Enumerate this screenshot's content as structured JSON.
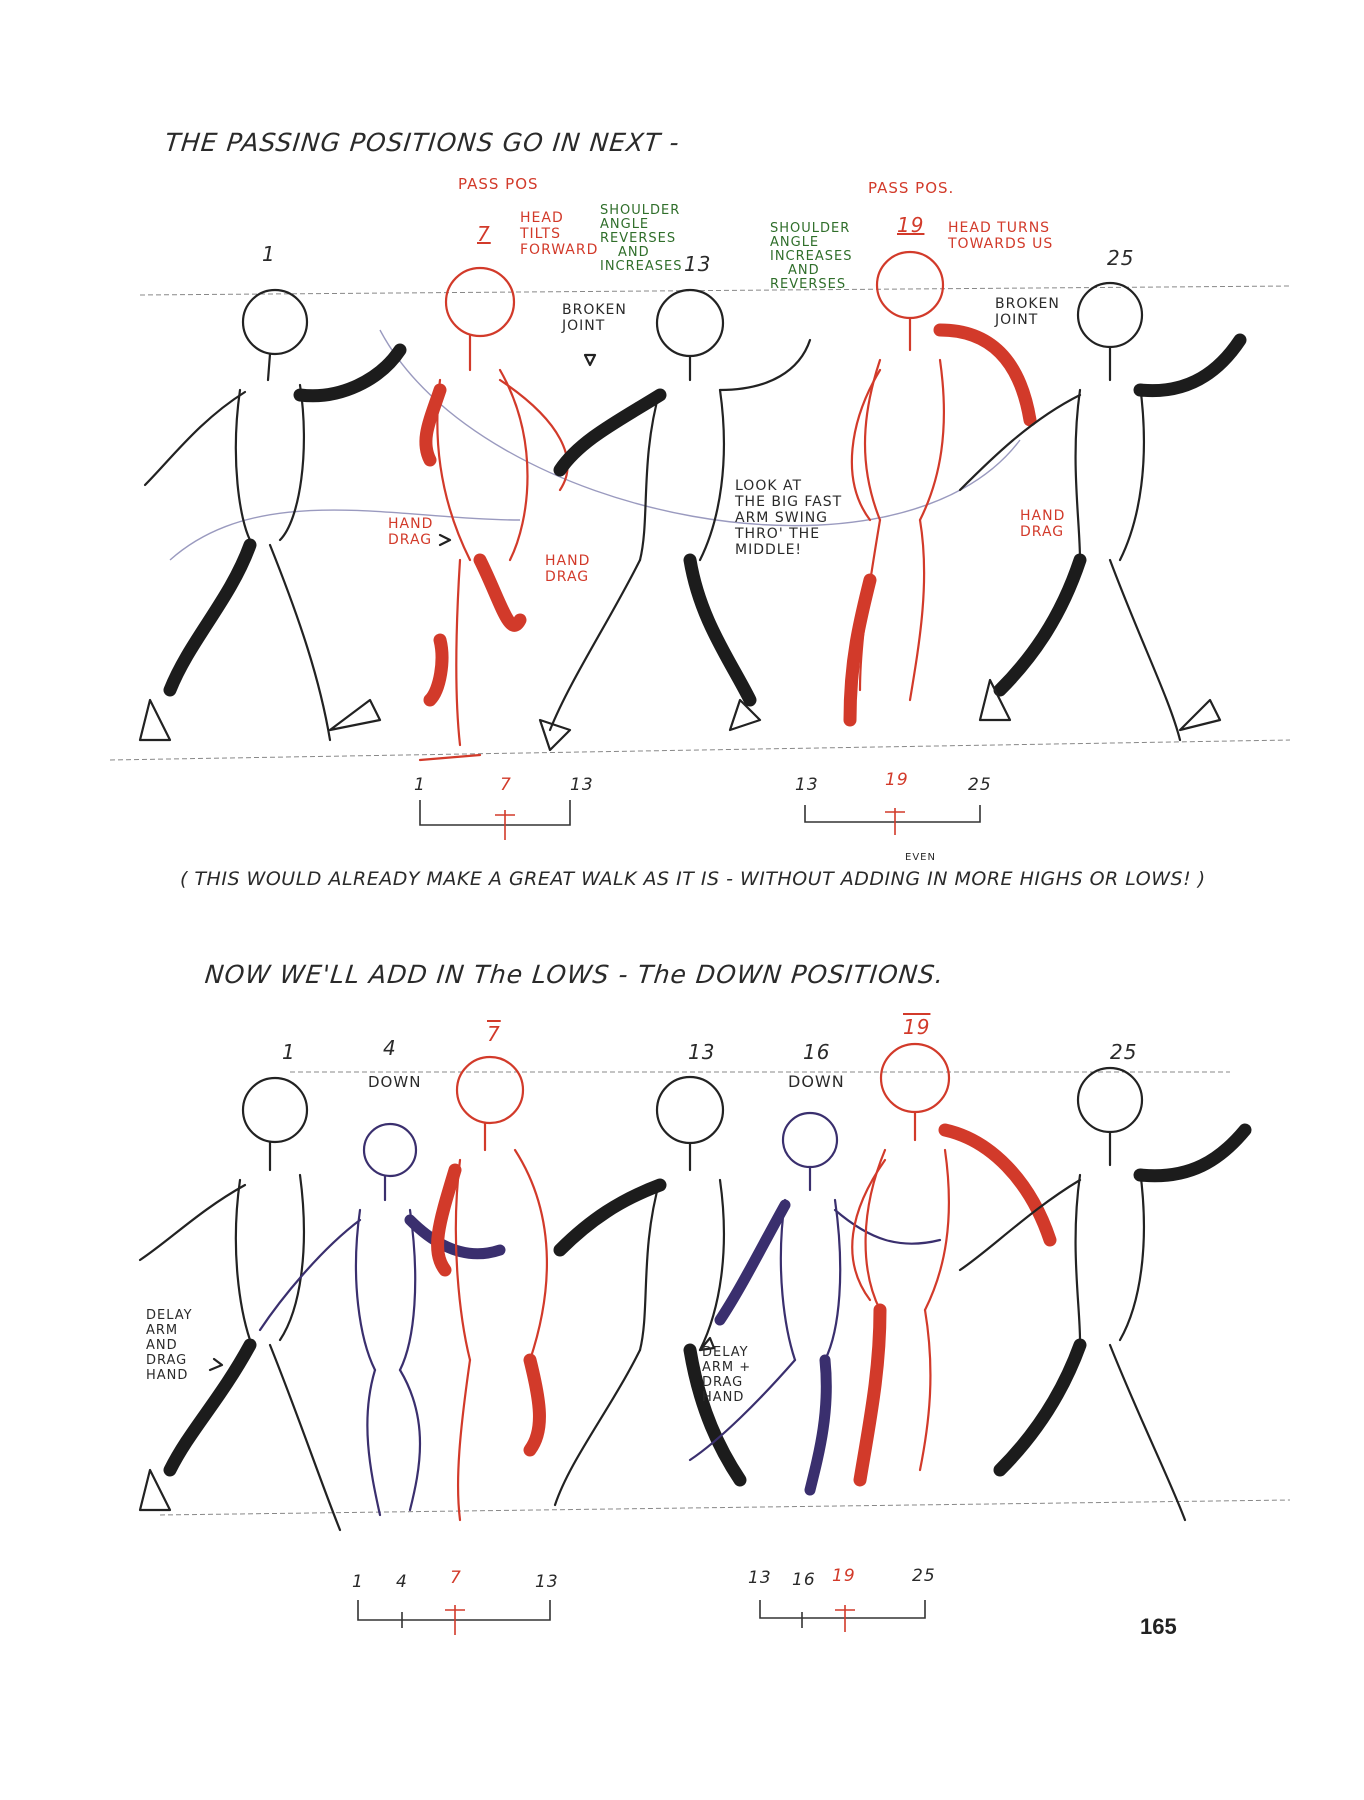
{
  "page_number": "165",
  "section1": {
    "heading": "THE PASSING POSITIONS GO IN NEXT -",
    "frame_labels": {
      "f1": "1",
      "f7": "7",
      "f13": "13",
      "f19": "19",
      "f25": "25"
    },
    "pass_pos_left": "PASS POS",
    "pass_pos_right": "PASS POS.",
    "notes": {
      "head_tilts": [
        "HEAD",
        "TILTS",
        "FORWARD"
      ],
      "shoulder_left": [
        "SHOULDER",
        "ANGLE",
        "REVERSES",
        "AND",
        "INCREASES"
      ],
      "shoulder_right": [
        "SHOULDER",
        "ANGLE",
        "INCREASES",
        "AND",
        "REVERSES"
      ],
      "head_turns": [
        "HEAD TURNS",
        "TOWARDS US"
      ],
      "broken_joint_left": [
        "BROKEN",
        "JOINT"
      ],
      "broken_joint_right": [
        "BROKEN",
        "JOINT"
      ],
      "hand_drag_a": [
        "HAND",
        "DRAG"
      ],
      "hand_drag_b": [
        "HAND",
        "DRAG"
      ],
      "hand_drag_c": [
        "HAND",
        "DRAG"
      ],
      "arm_swing": [
        "LOOK AT",
        "THE BIG FAST",
        "ARM SWING",
        "THRO' THE",
        "MIDDLE!"
      ]
    },
    "ruler_left": {
      "a": "1",
      "b": "7",
      "c": "13"
    },
    "ruler_right": {
      "a": "13",
      "b": "19",
      "c": "25"
    }
  },
  "caption": "( THIS WOULD ALREADY MAKE A GREAT WALK AS IT IS - WITHOUT ADDING IN MORE HIGHS OR LOWS! )",
  "caption_insert": "EVEN",
  "section2": {
    "heading": "NOW WE'LL ADD IN The LOWS - The DOWN POSITIONS.",
    "frame_labels": {
      "f1": "1",
      "f4": "4",
      "f7": "7",
      "f13": "13",
      "f16": "16",
      "f19": "19",
      "f25": "25"
    },
    "down_left": "DOWN",
    "down_right": "DOWN",
    "notes": {
      "delay_left": [
        "DELAY",
        "ARM",
        "AND",
        "DRAG",
        "HAND"
      ],
      "delay_right": [
        "DELAY",
        "ARM +",
        "DRAG",
        "HAND"
      ]
    },
    "ruler_left": {
      "a": "1",
      "b": "4",
      "c": "7",
      "d": "13"
    },
    "ruler_right": {
      "a": "13",
      "b": "16",
      "c": "19",
      "d": "25"
    }
  }
}
